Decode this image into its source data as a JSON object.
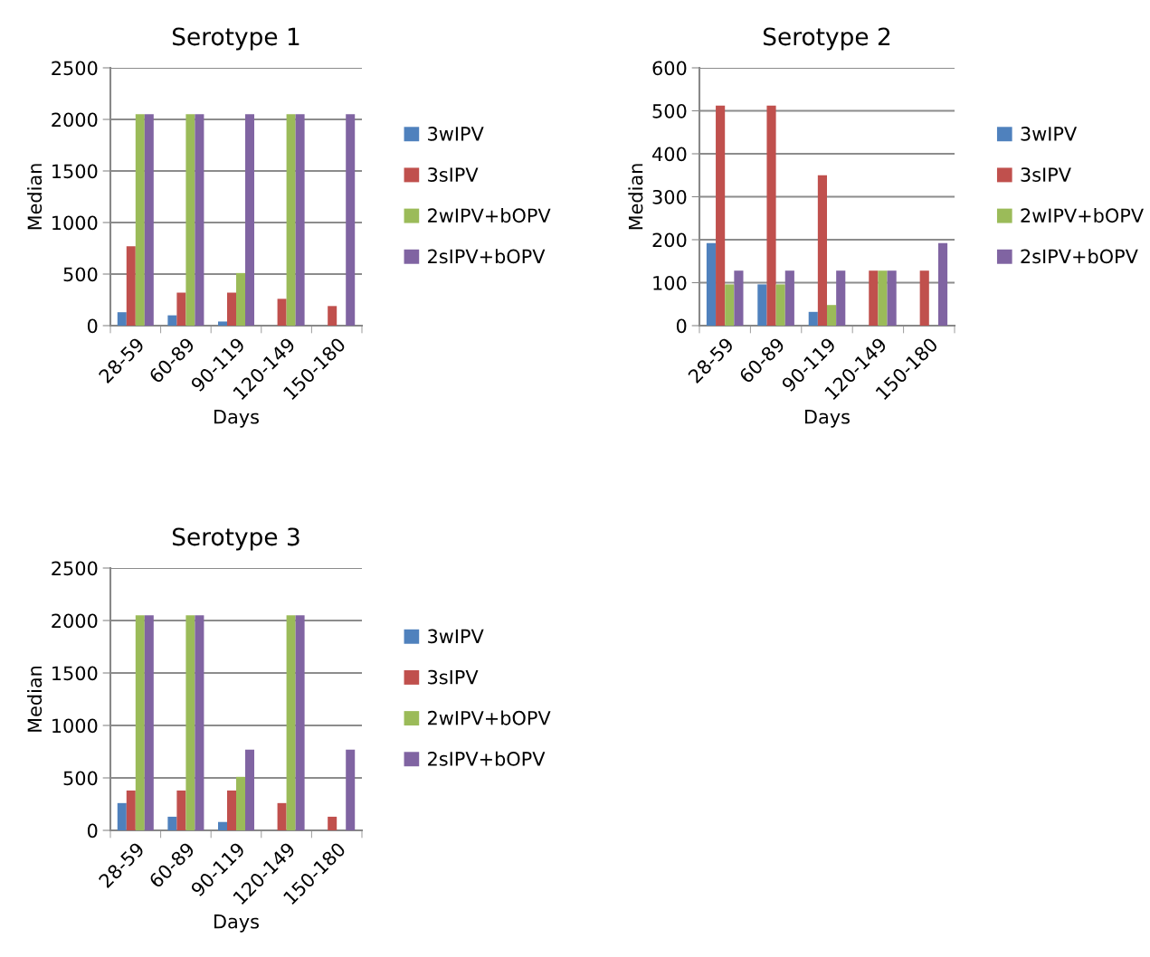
{
  "chart_data": [
    {
      "type": "bar",
      "title": "Serotype 1",
      "xlabel": "Days",
      "ylabel": "Median",
      "categories": [
        "28-59",
        "60-89",
        "90-119",
        "120-149",
        "150-180"
      ],
      "ylim": [
        0,
        2500
      ],
      "yticks": [
        0,
        500,
        1000,
        1500,
        2000,
        2500
      ],
      "grid": "y",
      "legend": "right",
      "series": [
        {
          "name": "3wIPV",
          "color": "#4f81bd",
          "values": [
            130,
            100,
            40,
            null,
            null
          ]
        },
        {
          "name": "3sIPV",
          "color": "#c0504d",
          "values": [
            770,
            320,
            320,
            260,
            190
          ]
        },
        {
          "name": "2wIPV+bOPV",
          "color": "#9bbb59",
          "values": [
            2050,
            2050,
            510,
            2050,
            null
          ]
        },
        {
          "name": "2sIPV+bOPV",
          "color": "#8064a2",
          "values": [
            2050,
            2050,
            2050,
            2050,
            2050
          ]
        }
      ]
    },
    {
      "type": "bar",
      "title": "Serotype 2",
      "xlabel": "Days",
      "ylabel": "Median",
      "categories": [
        "28-59",
        "60-89",
        "90-119",
        "120-149",
        "150-180"
      ],
      "ylim": [
        0,
        600
      ],
      "yticks": [
        0,
        100,
        200,
        300,
        400,
        500,
        600
      ],
      "grid": "y",
      "legend": "right",
      "series": [
        {
          "name": "3wIPV",
          "color": "#4f81bd",
          "values": [
            192,
            96,
            32,
            null,
            null
          ]
        },
        {
          "name": "3sIPV",
          "color": "#c0504d",
          "values": [
            512,
            512,
            350,
            128,
            128
          ]
        },
        {
          "name": "2wIPV+bOPV",
          "color": "#9bbb59",
          "values": [
            96,
            96,
            48,
            128,
            null
          ]
        },
        {
          "name": "2sIPV+bOPV",
          "color": "#8064a2",
          "values": [
            128,
            128,
            128,
            128,
            192
          ]
        }
      ]
    },
    {
      "type": "bar",
      "title": "Serotype 3",
      "xlabel": "Days",
      "ylabel": "Median",
      "categories": [
        "28-59",
        "60-89",
        "90-119",
        "120-149",
        "150-180"
      ],
      "ylim": [
        0,
        2500
      ],
      "yticks": [
        0,
        500,
        1000,
        1500,
        2000,
        2500
      ],
      "grid": "y",
      "legend": "right",
      "series": [
        {
          "name": "3wIPV",
          "color": "#4f81bd",
          "values": [
            260,
            130,
            80,
            null,
            null
          ]
        },
        {
          "name": "3sIPV",
          "color": "#c0504d",
          "values": [
            380,
            380,
            380,
            260,
            130
          ]
        },
        {
          "name": "2wIPV+bOPV",
          "color": "#9bbb59",
          "values": [
            2050,
            2050,
            510,
            2050,
            null
          ]
        },
        {
          "name": "2sIPV+bOPV",
          "color": "#8064a2",
          "values": [
            2050,
            2050,
            770,
            2050,
            770
          ]
        }
      ]
    }
  ]
}
